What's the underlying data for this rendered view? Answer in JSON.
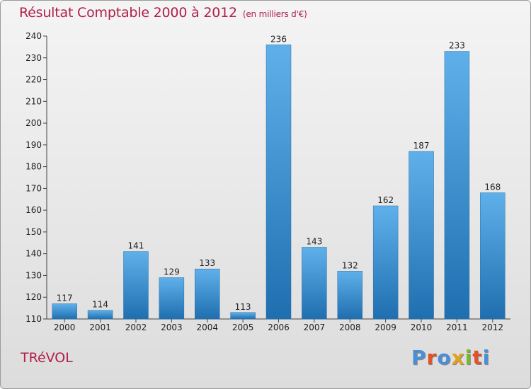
{
  "header": {
    "title": "Résultat Comptable 2000 à 2012",
    "subtitle": "(en milliers d'€)"
  },
  "footer": {
    "commune": "TRéVOL",
    "brand": "Proxiti"
  },
  "colors": {
    "title": "#b0204a",
    "bar_top": "#5fb0ea",
    "bar_bottom": "#1f6fb0",
    "logo_letters": [
      "#4a8fd6",
      "#e0522a",
      "#4a8fd6",
      "#e0a020",
      "#7ab82e",
      "#e0522a",
      "#4a8fd6"
    ]
  },
  "chart_data": {
    "type": "bar",
    "title": "Résultat Comptable 2000 à 2012",
    "subtitle": "(en milliers d'€)",
    "xlabel": "",
    "ylabel": "",
    "categories": [
      "2000",
      "2001",
      "2002",
      "2003",
      "2004",
      "2005",
      "2006",
      "2007",
      "2008",
      "2009",
      "2010",
      "2011",
      "2012"
    ],
    "values": [
      117,
      114,
      141,
      129,
      133,
      113,
      236,
      143,
      132,
      162,
      187,
      233,
      168
    ],
    "ylim": [
      110,
      240
    ],
    "yticks": [
      110,
      120,
      130,
      140,
      150,
      160,
      170,
      180,
      190,
      200,
      210,
      220,
      230,
      240
    ],
    "grid": false,
    "legend": "none"
  }
}
